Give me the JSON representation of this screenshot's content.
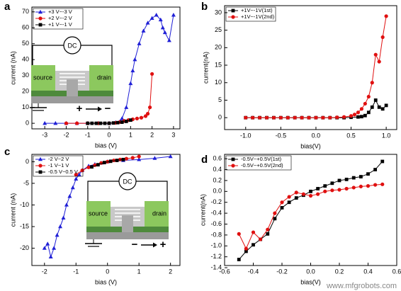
{
  "chart_data": [
    {
      "type": "line",
      "label": "a",
      "xlabel": "bias (V)",
      "ylabel": "current (nA)",
      "xlim": [
        -3.6,
        3.3
      ],
      "xticks": [
        -3,
        -2,
        -1,
        0,
        1,
        2,
        3
      ],
      "ylim": [
        -3.5,
        73
      ],
      "yticks": [
        0,
        10,
        20,
        30,
        40,
        50,
        60,
        70
      ],
      "legend": "upper left",
      "series": [
        {
          "name": "+3 V~-3 V",
          "color": "#1f1fd6",
          "marker": "triangle",
          "x": [
            -3,
            -2.5,
            -2,
            -1.5,
            -1,
            -0.5,
            0,
            0.3,
            0.5,
            0.6,
            0.8,
            1.0,
            1.1,
            1.2,
            1.4,
            1.6,
            1.8,
            2.0,
            2.2,
            2.4,
            2.5,
            2.6,
            2.8,
            3.0
          ],
          "values": [
            0,
            0,
            0,
            0,
            0,
            0,
            0,
            0.5,
            1,
            3,
            10,
            25,
            33,
            40,
            50,
            58,
            63,
            66,
            68,
            65,
            60,
            57,
            52,
            68
          ]
        },
        {
          "name": "+2 V~-2 V",
          "color": "#e01010",
          "marker": "circle",
          "x": [
            -2,
            -1.5,
            -1,
            -0.5,
            0,
            0.3,
            0.5,
            0.7,
            0.9,
            1.1,
            1.3,
            1.5,
            1.7,
            1.8,
            1.9,
            2.0
          ],
          "values": [
            0,
            0,
            0,
            0,
            0,
            0.3,
            0.8,
            1.5,
            2,
            2.5,
            3,
            3.5,
            4.5,
            6,
            10,
            31
          ]
        },
        {
          "name": "+1 V~-1 V",
          "color": "#000000",
          "marker": "square",
          "x": [
            -1,
            -0.8,
            -0.6,
            -0.4,
            -0.2,
            0,
            0.2,
            0.4,
            0.6,
            0.8,
            1.0
          ],
          "values": [
            0,
            0,
            0,
            0,
            0,
            0,
            0.2,
            0.4,
            0.7,
            1.2,
            2
          ]
        }
      ],
      "inset": {
        "dc": "DC",
        "source": "source",
        "drain": "drain",
        "signs": [
          "+",
          "−"
        ]
      }
    },
    {
      "type": "line",
      "label": "b",
      "xlabel": "bias(V)",
      "ylabel": "current(nA)",
      "xlim": [
        -1.3,
        1.15
      ],
      "xticks": [
        {
          "value": -1,
          "label": "-1.0"
        },
        -0.5,
        {
          "value": 0,
          "label": "0.0"
        },
        0.5,
        {
          "value": 1,
          "label": "1.0"
        }
      ],
      "ylim": [
        -3.4,
        32
      ],
      "yticks": [
        0,
        5,
        10,
        15,
        20,
        25,
        30
      ],
      "legend": "upper left",
      "series": [
        {
          "name": "+1V~-1V(1st)",
          "color": "#000000",
          "marker": "square",
          "x": [
            -1,
            -0.9,
            -0.8,
            -0.7,
            -0.6,
            -0.5,
            -0.4,
            -0.3,
            -0.2,
            -0.1,
            0,
            0.1,
            0.2,
            0.3,
            0.4,
            0.5,
            0.6,
            0.65,
            0.7,
            0.75,
            0.8,
            0.85,
            0.9,
            0.95,
            1.0
          ],
          "values": [
            0,
            0,
            0,
            0,
            0,
            0,
            0,
            0,
            0,
            0,
            0,
            0,
            0,
            0,
            0,
            0.1,
            0.2,
            0.3,
            0.6,
            1.5,
            3,
            5,
            3,
            2.5,
            3.5
          ]
        },
        {
          "name": "+1V~-1V(2nd)",
          "color": "#e01010",
          "marker": "circle",
          "x": [
            -1,
            -0.9,
            -0.8,
            -0.7,
            -0.6,
            -0.5,
            -0.4,
            -0.3,
            -0.2,
            -0.1,
            0,
            0.1,
            0.2,
            0.3,
            0.4,
            0.5,
            0.55,
            0.6,
            0.65,
            0.7,
            0.75,
            0.8,
            0.85,
            0.9,
            0.95,
            1.0
          ],
          "values": [
            0,
            0,
            0,
            0,
            0,
            0,
            0,
            0,
            0,
            0,
            0,
            0,
            0,
            0.1,
            0.2,
            0.5,
            0.9,
            1.5,
            2.5,
            4,
            6,
            10,
            18,
            16,
            23,
            29
          ]
        }
      ]
    },
    {
      "type": "line",
      "label": "c",
      "xlabel": "bias (V)",
      "ylabel": "current (nA)",
      "xlim": [
        -2.4,
        2.3
      ],
      "xticks": [
        -2,
        -1,
        0,
        1,
        2
      ],
      "ylim": [
        -24,
        1.7
      ],
      "yticks": [
        -20,
        -15,
        -10,
        -5,
        0
      ],
      "legend": "upper left",
      "series": [
        {
          "name": "-2 V~2 V",
          "color": "#1f1fd6",
          "marker": "triangle",
          "x": [
            -2,
            -1.9,
            -1.8,
            -1.7,
            -1.6,
            -1.5,
            -1.4,
            -1.3,
            -1.2,
            -1.1,
            -1.0,
            -0.9,
            -0.8,
            -0.6,
            -0.4,
            -0.2,
            0,
            0.5,
            1.0,
            1.5,
            2.0
          ],
          "values": [
            -20,
            -19,
            -22,
            -20,
            -17,
            -15,
            -13,
            -10,
            -8,
            -6,
            -4,
            -3,
            -2,
            -1,
            -0.6,
            -0.3,
            0,
            0.3,
            0.5,
            0.8,
            1.2
          ]
        },
        {
          "name": "-1 V~1 V",
          "color": "#e01010",
          "marker": "circle",
          "x": [
            -1,
            -0.8,
            -0.6,
            -0.4,
            -0.2,
            0,
            0.2,
            0.4,
            0.6,
            0.8,
            1.0
          ],
          "values": [
            -3,
            -2,
            -1.3,
            -0.8,
            -0.3,
            0,
            0.3,
            0.5,
            0.7,
            0.9,
            1.2
          ]
        },
        {
          "name": "-0.5 V~0.5 V",
          "color": "#000000",
          "marker": "square",
          "x": [
            -0.5,
            -0.3,
            -0.1,
            0.1,
            0.3,
            0.5
          ],
          "values": [
            -1.2,
            -0.7,
            -0.2,
            0.1,
            0.3,
            0.5
          ]
        }
      ],
      "inset": {
        "dc": "DC",
        "source": "source",
        "drain": "drain",
        "signs": [
          "−",
          "+"
        ]
      }
    },
    {
      "type": "line",
      "label": "d",
      "xlabel": "bias(V)",
      "ylabel": "current(nA)",
      "xlim": [
        -0.6,
        0.6
      ],
      "xticks": [
        -0.6,
        -0.4,
        -0.2,
        {
          "value": 0,
          "label": "0.0"
        },
        0.2,
        0.4,
        0.6
      ],
      "ylim": [
        -1.36,
        0.68
      ],
      "yticks": [
        -1.4,
        -1.2,
        {
          "value": -1,
          "label": "-1.0"
        },
        -0.8,
        -0.6,
        -0.4,
        -0.2,
        {
          "value": 0,
          "label": "0.0"
        },
        0.2,
        0.4,
        0.6
      ],
      "legend": "upper left",
      "series": [
        {
          "name": "-0.5V~+0.5V(1st)",
          "color": "#000000",
          "marker": "square",
          "x": [
            -0.5,
            -0.45,
            -0.4,
            -0.35,
            -0.3,
            -0.25,
            -0.2,
            -0.15,
            -0.1,
            -0.05,
            0,
            0.05,
            0.1,
            0.15,
            0.2,
            0.25,
            0.3,
            0.35,
            0.4,
            0.45,
            0.5
          ],
          "values": [
            -1.25,
            -1.1,
            -0.98,
            -0.88,
            -0.78,
            -0.5,
            -0.3,
            -0.2,
            -0.12,
            -0.07,
            0,
            0.05,
            0.1,
            0.15,
            0.2,
            0.22,
            0.25,
            0.27,
            0.32,
            0.4,
            0.55
          ]
        },
        {
          "name": "-0.5V~+0.5V(2nd)",
          "color": "#e01010",
          "marker": "circle",
          "x": [
            -0.5,
            -0.45,
            -0.4,
            -0.35,
            -0.3,
            -0.25,
            -0.2,
            -0.15,
            -0.1,
            -0.05,
            0,
            0.05,
            0.1,
            0.15,
            0.2,
            0.25,
            0.3,
            0.35,
            0.4,
            0.45,
            0.5
          ],
          "values": [
            -0.78,
            -1.05,
            -0.75,
            -0.88,
            -0.7,
            -0.4,
            -0.2,
            -0.1,
            -0.02,
            -0.05,
            -0.08,
            -0.05,
            0,
            0.02,
            0.03,
            0.05,
            0.07,
            0.09,
            0.1,
            0.12,
            0.13
          ]
        }
      ]
    }
  ],
  "watermark": "www.mfgrobots.com"
}
